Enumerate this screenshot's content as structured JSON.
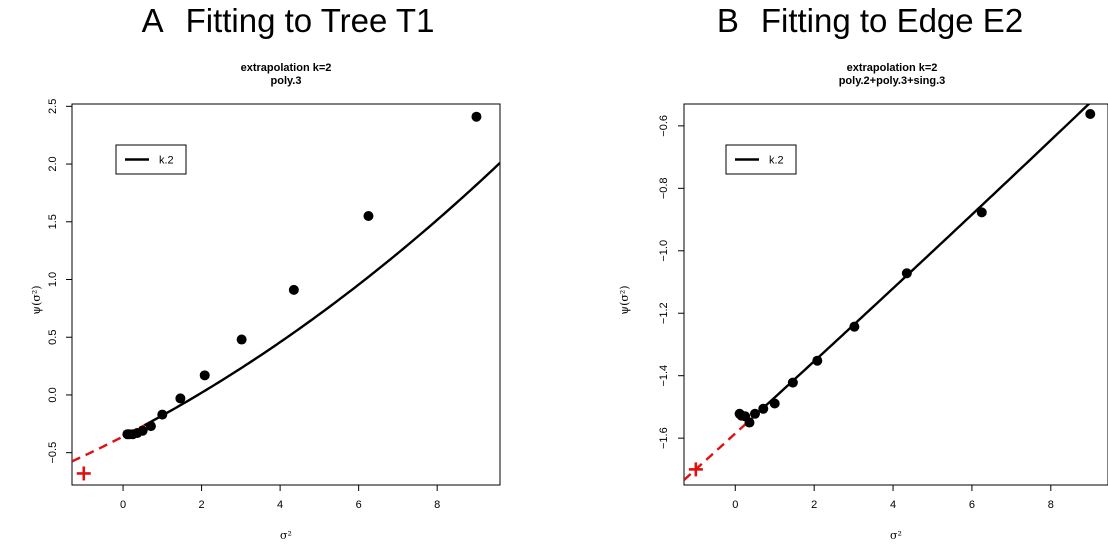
{
  "chart_data": [
    {
      "type": "scatter",
      "panel_letter": "A",
      "panel_title": "Fitting to Tree T1",
      "title_lines": [
        "extrapolation k=2",
        "poly.3"
      ],
      "xlabel": "σ²",
      "ylabel": "ψ(σ²)",
      "xlim": [
        -1.3,
        9.6
      ],
      "ylim": [
        -0.78,
        2.52
      ],
      "xticks": [
        0,
        2,
        4,
        6,
        8
      ],
      "yticks": [
        -0.5,
        0.0,
        0.5,
        1.0,
        1.5,
        2.0,
        2.5
      ],
      "ytick_labels": [
        "−0.5",
        "0.0",
        "0.5",
        "1.0",
        "1.5",
        "2.0",
        "2.5"
      ],
      "legend": {
        "position": "top-left",
        "entries": [
          "k.2"
        ]
      },
      "points": {
        "x": [
          0.11,
          0.16,
          0.25,
          0.36,
          0.5,
          0.71,
          1.0,
          1.46,
          2.08,
          3.02,
          4.35,
          6.25,
          9.0
        ],
        "y": [
          -0.34,
          -0.34,
          -0.34,
          -0.33,
          -0.31,
          -0.27,
          -0.17,
          -0.03,
          0.17,
          0.48,
          0.91,
          1.55,
          2.41
        ]
      },
      "fit_curve": {
        "series": "k.2",
        "model": "poly.3",
        "coef": [
          -0.36,
          0.175,
          0.0072,
          3e-05
        ],
        "x_range": [
          0.55,
          9.6
        ]
      },
      "extrapolation": {
        "style": "dashed",
        "color": "#e01010",
        "coef": [
          -0.36,
          0.175,
          0.0072,
          3e-05
        ],
        "x_range": [
          -1.3,
          0.8
        ]
      },
      "estimate": {
        "x": -1,
        "y": -0.68,
        "marker": "+",
        "color": "#e01010"
      }
    },
    {
      "type": "scatter",
      "panel_letter": "B",
      "panel_title": "Fitting to Edge E2",
      "title_lines": [
        "extrapolation k=2",
        "poly.2+poly.3+sing.3"
      ],
      "xlabel": "σ²",
      "ylabel": "ψ(σ²)",
      "xlim": [
        -1.3,
        9.45
      ],
      "ylim": [
        -1.75,
        -0.53
      ],
      "xticks": [
        0,
        2,
        4,
        6,
        8
      ],
      "yticks": [
        -1.6,
        -1.4,
        -1.2,
        -1.0,
        -0.8,
        -0.6
      ],
      "ytick_labels": [
        "−1.6",
        "−1.4",
        "−1.2",
        "−1.0",
        "−0.8",
        "−0.6"
      ],
      "legend": {
        "position": "top-left",
        "entries": [
          "k.2"
        ]
      },
      "points": {
        "x": [
          0.11,
          0.16,
          0.25,
          0.36,
          0.5,
          0.71,
          1.0,
          1.46,
          2.08,
          3.02,
          4.35,
          6.25,
          9.0
        ],
        "y": [
          -1.522,
          -1.528,
          -1.53,
          -1.55,
          -1.522,
          -1.506,
          -1.489,
          -1.422,
          -1.352,
          -1.243,
          -1.072,
          -0.877,
          -0.562
        ]
      },
      "fit_curve": {
        "series": "k.2",
        "model": "poly.2+poly.3+sing.3",
        "coef": [
          -1.585,
          0.115,
          0.0003,
          0
        ],
        "x_range": [
          0.65,
          9.45
        ]
      },
      "extrapolation": {
        "style": "dashed",
        "color": "#e01010",
        "coef": [
          -1.585,
          0.115,
          0.0003,
          0
        ],
        "x_range": [
          -1.3,
          0.8
        ]
      },
      "estimate": {
        "x": -1,
        "y": -1.7,
        "marker": "+",
        "color": "#e01010"
      }
    }
  ],
  "colors": {
    "points": "#000000",
    "fit": "#000000",
    "extrapolation": "#e01010"
  }
}
